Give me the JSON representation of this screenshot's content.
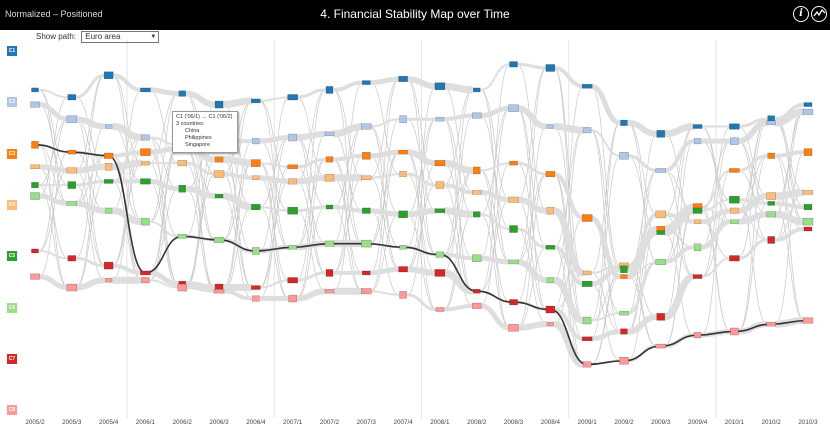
{
  "header": {
    "mode_label": "Normalized – Positioned",
    "title": "4. Financial Stability Map over Time",
    "info_icon": "info-icon",
    "trend_icon": "trend-icon"
  },
  "path_control": {
    "label": "Show path:",
    "selected": "Euro area"
  },
  "colors": {
    "C1": "#1f77b4",
    "C2": "#aec7e8",
    "C3": "#ff7f0e",
    "C4": "#ffbb78",
    "C5": "#2ca02c",
    "C6": "#98df8a",
    "C7": "#d62728",
    "C8": "#ff9896",
    "flow": "#dedede",
    "thin_flow": "#c8c8c8",
    "path": "#333333",
    "header_bg": "#000000"
  },
  "tooltip": {
    "title": "C1 ('06/1) → C1 ('06/2)",
    "count_label": "3 countries:",
    "countries": [
      "China",
      "Philippines",
      "Singapore"
    ]
  },
  "chart_data": {
    "type": "flow-map",
    "title": "4. Financial Stability Map over Time",
    "categories": [
      "2005/2",
      "2005/3",
      "2005/4",
      "2006/1",
      "2006/2",
      "2006/3",
      "2006/4",
      "2007/1",
      "2007/2",
      "2007/3",
      "2007/4",
      "2008/1",
      "2008/2",
      "2008/3",
      "2008/4",
      "2009/1",
      "2009/2",
      "2009/3",
      "2009/4",
      "2010/1",
      "2010/2",
      "2010/3"
    ],
    "year_separators_after": [
      "2005/4",
      "2006/4",
      "2007/4",
      "2008/4",
      "2009/4"
    ],
    "clusters": [
      "C1",
      "C2",
      "C3",
      "C4",
      "C5",
      "C6",
      "C7",
      "C8"
    ],
    "y_axis": "normalized position (0 = top, 1 = bottom)",
    "series": [
      {
        "name": "C1",
        "positions": [
          0.12,
          0.14,
          0.08,
          0.12,
          0.13,
          0.16,
          0.15,
          0.14,
          0.12,
          0.1,
          0.09,
          0.11,
          0.12,
          0.05,
          0.06,
          0.11,
          0.21,
          0.24,
          0.22,
          0.22,
          0.2,
          0.16
        ]
      },
      {
        "name": "C2",
        "positions": [
          0.16,
          0.2,
          0.22,
          0.25,
          0.27,
          0.26,
          0.26,
          0.25,
          0.24,
          0.22,
          0.2,
          0.2,
          0.19,
          0.17,
          0.22,
          0.23,
          0.3,
          0.34,
          0.26,
          0.26,
          0.21,
          0.18
        ]
      },
      {
        "name": "C3",
        "positions": [
          0.27,
          0.29,
          0.3,
          0.29,
          0.28,
          0.31,
          0.32,
          0.33,
          0.31,
          0.3,
          0.29,
          0.32,
          0.34,
          0.32,
          0.35,
          0.47,
          0.63,
          0.5,
          0.44,
          0.34,
          0.3,
          0.29
        ]
      },
      {
        "name": "C4",
        "positions": [
          0.33,
          0.34,
          0.33,
          0.32,
          0.32,
          0.35,
          0.36,
          0.37,
          0.36,
          0.36,
          0.35,
          0.38,
          0.4,
          0.42,
          0.45,
          0.62,
          0.6,
          0.46,
          0.48,
          0.45,
          0.41,
          0.4
        ]
      },
      {
        "name": "C5",
        "positions": [
          0.38,
          0.38,
          0.37,
          0.37,
          0.39,
          0.41,
          0.44,
          0.45,
          0.44,
          0.45,
          0.46,
          0.45,
          0.46,
          0.5,
          0.55,
          0.65,
          0.61,
          0.51,
          0.45,
          0.42,
          0.43,
          0.44
        ]
      },
      {
        "name": "C6",
        "positions": [
          0.41,
          0.43,
          0.45,
          0.48,
          0.52,
          0.53,
          0.56,
          0.55,
          0.54,
          0.54,
          0.55,
          0.57,
          0.58,
          0.59,
          0.64,
          0.75,
          0.73,
          0.59,
          0.55,
          0.48,
          0.46,
          0.48
        ]
      },
      {
        "name": "C7",
        "positions": [
          0.56,
          0.58,
          0.6,
          0.62,
          0.65,
          0.66,
          0.66,
          0.64,
          0.62,
          0.62,
          0.61,
          0.62,
          0.67,
          0.7,
          0.72,
          0.8,
          0.78,
          0.74,
          0.63,
          0.58,
          0.53,
          0.5
        ]
      },
      {
        "name": "C8",
        "positions": [
          0.63,
          0.66,
          0.64,
          0.64,
          0.66,
          0.67,
          0.69,
          0.69,
          0.67,
          0.67,
          0.68,
          0.72,
          0.71,
          0.77,
          0.76,
          0.87,
          0.86,
          0.82,
          0.79,
          0.78,
          0.76,
          0.75
        ]
      }
    ],
    "highlighted_path": {
      "name": "Euro area",
      "clusters": [
        "C3",
        "C3",
        "C3",
        "C7",
        "C6",
        "C6",
        "C6",
        "C6",
        "C6",
        "C6",
        "C6",
        "C6",
        "C7",
        "C7",
        "C7",
        "C8",
        "C8",
        "C8",
        "C8",
        "C8",
        "C8",
        "C8"
      ]
    }
  }
}
